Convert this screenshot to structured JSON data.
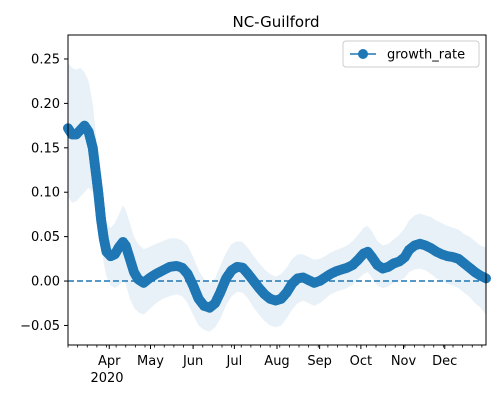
{
  "chart_data": {
    "type": "line",
    "title": "NC-Guilford",
    "xlabel": "",
    "ylabel": "",
    "x_start": "2020-03-02",
    "x_end": "2020-12-31",
    "xlim": [
      "2020-03-02",
      "2020-12-31"
    ],
    "ylim": [
      -0.072,
      0.277
    ],
    "yticks": [
      -0.05,
      0.0,
      0.05,
      0.1,
      0.15,
      0.2,
      0.25
    ],
    "ytick_labels": [
      "−0.05",
      "0.00",
      "0.05",
      "0.10",
      "0.15",
      "0.20",
      "0.25"
    ],
    "xtick_labels": [
      {
        "date": "2020-04-01",
        "label": "Apr"
      },
      {
        "date": "2020-05-01",
        "label": "May"
      },
      {
        "date": "2020-06-01",
        "label": "Jun"
      },
      {
        "date": "2020-07-01",
        "label": "Jul"
      },
      {
        "date": "2020-08-01",
        "label": "Aug"
      },
      {
        "date": "2020-09-01",
        "label": "Sep"
      },
      {
        "date": "2020-10-01",
        "label": "Oct"
      },
      {
        "date": "2020-11-01",
        "label": "Nov"
      },
      {
        "date": "2020-12-01",
        "label": "Dec"
      }
    ],
    "year_label": "2020",
    "grid": false,
    "legend_placement": "top-right",
    "reference_line": {
      "y": 0.0,
      "style": "dashed",
      "color": "#1f77b4"
    },
    "band_color": "#1f77b4",
    "series": [
      {
        "name": "growth_rate",
        "color": "#1f77b4",
        "marker": "circle",
        "points": [
          {
            "date": "2020-03-02",
            "y": 0.172,
            "lo": 0.095,
            "hi": 0.245
          },
          {
            "date": "2020-03-05",
            "y": 0.165,
            "lo": 0.088,
            "hi": 0.24
          },
          {
            "date": "2020-03-08",
            "y": 0.165,
            "lo": 0.09,
            "hi": 0.238
          },
          {
            "date": "2020-03-11",
            "y": 0.17,
            "lo": 0.095,
            "hi": 0.24
          },
          {
            "date": "2020-03-14",
            "y": 0.175,
            "lo": 0.1,
            "hi": 0.235
          },
          {
            "date": "2020-03-17",
            "y": 0.168,
            "lo": 0.105,
            "hi": 0.225
          },
          {
            "date": "2020-03-20",
            "y": 0.15,
            "lo": 0.1,
            "hi": 0.2
          },
          {
            "date": "2020-03-22",
            "y": 0.125,
            "lo": 0.085,
            "hi": 0.17
          },
          {
            "date": "2020-03-24",
            "y": 0.1,
            "lo": 0.065,
            "hi": 0.14
          },
          {
            "date": "2020-03-26",
            "y": 0.07,
            "lo": 0.04,
            "hi": 0.11
          },
          {
            "date": "2020-03-28",
            "y": 0.048,
            "lo": 0.02,
            "hi": 0.085
          },
          {
            "date": "2020-03-30",
            "y": 0.033,
            "lo": 0.005,
            "hi": 0.065
          },
          {
            "date": "2020-04-02",
            "y": 0.028,
            "lo": -0.005,
            "hi": 0.06
          },
          {
            "date": "2020-04-05",
            "y": 0.03,
            "lo": -0.008,
            "hi": 0.065
          },
          {
            "date": "2020-04-08",
            "y": 0.038,
            "lo": -0.005,
            "hi": 0.075
          },
          {
            "date": "2020-04-11",
            "y": 0.044,
            "lo": 0.0,
            "hi": 0.085
          },
          {
            "date": "2020-04-13",
            "y": 0.04,
            "lo": -0.003,
            "hi": 0.08
          },
          {
            "date": "2020-04-16",
            "y": 0.025,
            "lo": -0.02,
            "hi": 0.065
          },
          {
            "date": "2020-04-19",
            "y": 0.01,
            "lo": -0.03,
            "hi": 0.05
          },
          {
            "date": "2020-04-22",
            "y": 0.002,
            "lo": -0.035,
            "hi": 0.042
          },
          {
            "date": "2020-04-26",
            "y": -0.002,
            "lo": -0.038,
            "hi": 0.036
          },
          {
            "date": "2020-04-30",
            "y": 0.003,
            "lo": -0.032,
            "hi": 0.038
          },
          {
            "date": "2020-05-05",
            "y": 0.008,
            "lo": -0.025,
            "hi": 0.042
          },
          {
            "date": "2020-05-10",
            "y": 0.012,
            "lo": -0.02,
            "hi": 0.045
          },
          {
            "date": "2020-05-15",
            "y": 0.016,
            "lo": -0.017,
            "hi": 0.048
          },
          {
            "date": "2020-05-20",
            "y": 0.017,
            "lo": -0.015,
            "hi": 0.048
          },
          {
            "date": "2020-05-24",
            "y": 0.015,
            "lo": -0.017,
            "hi": 0.046
          },
          {
            "date": "2020-05-28",
            "y": 0.008,
            "lo": -0.025,
            "hi": 0.04
          },
          {
            "date": "2020-06-01",
            "y": -0.005,
            "lo": -0.038,
            "hi": 0.027
          },
          {
            "date": "2020-06-05",
            "y": -0.02,
            "lo": -0.05,
            "hi": 0.012
          },
          {
            "date": "2020-06-09",
            "y": -0.028,
            "lo": -0.055,
            "hi": 0.002
          },
          {
            "date": "2020-06-13",
            "y": -0.03,
            "lo": -0.057,
            "hi": -0.002
          },
          {
            "date": "2020-06-17",
            "y": -0.025,
            "lo": -0.052,
            "hi": 0.003
          },
          {
            "date": "2020-06-21",
            "y": -0.012,
            "lo": -0.042,
            "hi": 0.018
          },
          {
            "date": "2020-06-25",
            "y": 0.003,
            "lo": -0.027,
            "hi": 0.032
          },
          {
            "date": "2020-06-29",
            "y": 0.012,
            "lo": -0.017,
            "hi": 0.042
          },
          {
            "date": "2020-07-03",
            "y": 0.016,
            "lo": -0.012,
            "hi": 0.045
          },
          {
            "date": "2020-07-07",
            "y": 0.015,
            "lo": -0.013,
            "hi": 0.044
          },
          {
            "date": "2020-07-11",
            "y": 0.008,
            "lo": -0.02,
            "hi": 0.037
          },
          {
            "date": "2020-07-15",
            "y": 0.0,
            "lo": -0.03,
            "hi": 0.028
          },
          {
            "date": "2020-07-19",
            "y": -0.008,
            "lo": -0.038,
            "hi": 0.02
          },
          {
            "date": "2020-07-23",
            "y": -0.015,
            "lo": -0.045,
            "hi": 0.013
          },
          {
            "date": "2020-07-27",
            "y": -0.02,
            "lo": -0.05,
            "hi": 0.008
          },
          {
            "date": "2020-07-31",
            "y": -0.022,
            "lo": -0.052,
            "hi": 0.005
          },
          {
            "date": "2020-08-04",
            "y": -0.02,
            "lo": -0.05,
            "hi": 0.008
          },
          {
            "date": "2020-08-08",
            "y": -0.013,
            "lo": -0.042,
            "hi": 0.015
          },
          {
            "date": "2020-08-12",
            "y": -0.003,
            "lo": -0.032,
            "hi": 0.025
          },
          {
            "date": "2020-08-16",
            "y": 0.003,
            "lo": -0.025,
            "hi": 0.03
          },
          {
            "date": "2020-08-20",
            "y": 0.004,
            "lo": -0.022,
            "hi": 0.03
          },
          {
            "date": "2020-08-24",
            "y": 0.001,
            "lo": -0.025,
            "hi": 0.027
          },
          {
            "date": "2020-08-28",
            "y": -0.002,
            "lo": -0.028,
            "hi": 0.024
          },
          {
            "date": "2020-09-01",
            "y": 0.0,
            "lo": -0.025,
            "hi": 0.025
          },
          {
            "date": "2020-09-05",
            "y": 0.004,
            "lo": -0.02,
            "hi": 0.028
          },
          {
            "date": "2020-09-09",
            "y": 0.008,
            "lo": -0.015,
            "hi": 0.032
          },
          {
            "date": "2020-09-13",
            "y": 0.011,
            "lo": -0.012,
            "hi": 0.035
          },
          {
            "date": "2020-09-17",
            "y": 0.013,
            "lo": -0.01,
            "hi": 0.037
          },
          {
            "date": "2020-09-21",
            "y": 0.015,
            "lo": -0.008,
            "hi": 0.04
          },
          {
            "date": "2020-09-25",
            "y": 0.018,
            "lo": -0.004,
            "hi": 0.045
          },
          {
            "date": "2020-09-29",
            "y": 0.024,
            "lo": 0.002,
            "hi": 0.052
          },
          {
            "date": "2020-10-03",
            "y": 0.031,
            "lo": 0.008,
            "hi": 0.06
          },
          {
            "date": "2020-10-06",
            "y": 0.033,
            "lo": 0.01,
            "hi": 0.062
          },
          {
            "date": "2020-10-09",
            "y": 0.027,
            "lo": 0.004,
            "hi": 0.056
          },
          {
            "date": "2020-10-13",
            "y": 0.018,
            "lo": -0.005,
            "hi": 0.045
          },
          {
            "date": "2020-10-17",
            "y": 0.014,
            "lo": -0.008,
            "hi": 0.04
          },
          {
            "date": "2020-10-21",
            "y": 0.016,
            "lo": -0.006,
            "hi": 0.042
          },
          {
            "date": "2020-10-25",
            "y": 0.02,
            "lo": -0.002,
            "hi": 0.047
          },
          {
            "date": "2020-10-29",
            "y": 0.022,
            "lo": 0.0,
            "hi": 0.052
          },
          {
            "date": "2020-11-02",
            "y": 0.027,
            "lo": 0.004,
            "hi": 0.06
          },
          {
            "date": "2020-11-05",
            "y": 0.035,
            "lo": 0.01,
            "hi": 0.068
          },
          {
            "date": "2020-11-09",
            "y": 0.04,
            "lo": 0.013,
            "hi": 0.074
          },
          {
            "date": "2020-11-13",
            "y": 0.042,
            "lo": 0.014,
            "hi": 0.076
          },
          {
            "date": "2020-11-17",
            "y": 0.04,
            "lo": 0.012,
            "hi": 0.074
          },
          {
            "date": "2020-11-21",
            "y": 0.037,
            "lo": 0.008,
            "hi": 0.072
          },
          {
            "date": "2020-11-25",
            "y": 0.033,
            "lo": 0.003,
            "hi": 0.068
          },
          {
            "date": "2020-11-29",
            "y": 0.03,
            "lo": 0.0,
            "hi": 0.065
          },
          {
            "date": "2020-12-03",
            "y": 0.028,
            "lo": -0.003,
            "hi": 0.062
          },
          {
            "date": "2020-12-07",
            "y": 0.027,
            "lo": -0.005,
            "hi": 0.06
          },
          {
            "date": "2020-12-11",
            "y": 0.025,
            "lo": -0.008,
            "hi": 0.058
          },
          {
            "date": "2020-12-15",
            "y": 0.02,
            "lo": -0.013,
            "hi": 0.053
          },
          {
            "date": "2020-12-19",
            "y": 0.015,
            "lo": -0.018,
            "hi": 0.05
          },
          {
            "date": "2020-12-23",
            "y": 0.01,
            "lo": -0.025,
            "hi": 0.045
          },
          {
            "date": "2020-12-27",
            "y": 0.006,
            "lo": -0.03,
            "hi": 0.04
          },
          {
            "date": "2020-12-31",
            "y": 0.003,
            "lo": -0.038,
            "hi": 0.038
          }
        ]
      }
    ]
  }
}
